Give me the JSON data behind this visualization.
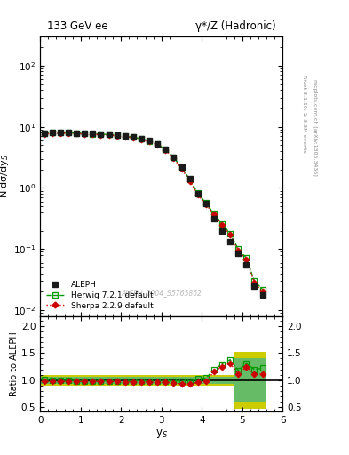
{
  "title_left": "133 GeV ee",
  "title_right": "γ*/Z (Hadronic)",
  "ylabel_main": "N dσ/dy$_S$",
  "ylabel_ratio": "Ratio to ALEPH",
  "xlabel": "y$_S$",
  "right_label_top": "Rivet 3.1.10; ≥ 3.3M events",
  "right_label_bot": "mcplots.cern.ch [arXiv:1306.3436]",
  "watermark": "ALEPH_2004_S5765862",
  "aleph_x": [
    0.1,
    0.3,
    0.5,
    0.7,
    0.9,
    1.1,
    1.3,
    1.5,
    1.7,
    1.9,
    2.1,
    2.3,
    2.5,
    2.7,
    2.9,
    3.1,
    3.3,
    3.5,
    3.7,
    3.9,
    4.1,
    4.3,
    4.5,
    4.7,
    4.9,
    5.1,
    5.3,
    5.5
  ],
  "aleph_y": [
    7.8,
    8.0,
    8.1,
    8.0,
    7.9,
    7.8,
    7.7,
    7.6,
    7.5,
    7.3,
    7.1,
    6.8,
    6.4,
    5.9,
    5.2,
    4.3,
    3.2,
    2.2,
    1.4,
    0.8,
    0.55,
    0.32,
    0.2,
    0.13,
    0.085,
    0.055,
    0.025,
    0.018
  ],
  "herwig_x": [
    0.1,
    0.3,
    0.5,
    0.7,
    0.9,
    1.1,
    1.3,
    1.5,
    1.7,
    1.9,
    2.1,
    2.3,
    2.5,
    2.7,
    2.9,
    3.1,
    3.3,
    3.5,
    3.7,
    3.9,
    4.1,
    4.3,
    4.5,
    4.7,
    4.9,
    5.1,
    5.3,
    5.5
  ],
  "herwig_y": [
    7.88,
    8.0,
    8.08,
    7.99,
    7.88,
    7.78,
    7.68,
    7.58,
    7.45,
    7.26,
    7.07,
    6.77,
    6.36,
    5.87,
    5.17,
    4.28,
    3.18,
    2.17,
    1.38,
    0.82,
    0.57,
    0.38,
    0.26,
    0.18,
    0.1,
    0.072,
    0.03,
    0.022
  ],
  "sherpa_x": [
    0.1,
    0.3,
    0.5,
    0.7,
    0.9,
    1.1,
    1.3,
    1.5,
    1.7,
    1.9,
    2.1,
    2.3,
    2.5,
    2.7,
    2.9,
    3.1,
    3.3,
    3.5,
    3.7,
    3.9,
    4.1,
    4.3,
    4.5,
    4.7,
    4.9,
    5.1,
    5.3,
    5.5
  ],
  "sherpa_y": [
    7.65,
    7.8,
    7.9,
    7.82,
    7.73,
    7.63,
    7.53,
    7.43,
    7.32,
    7.12,
    6.92,
    6.62,
    6.22,
    5.73,
    5.05,
    4.15,
    3.05,
    2.05,
    1.3,
    0.77,
    0.54,
    0.37,
    0.25,
    0.17,
    0.095,
    0.068,
    0.028,
    0.02
  ],
  "herwig_ratio": [
    1.01,
    1.0,
    1.0,
    1.0,
    0.99,
    0.99,
    0.99,
    0.99,
    0.99,
    0.99,
    0.99,
    0.99,
    0.99,
    0.99,
    0.99,
    0.99,
    0.99,
    0.99,
    0.99,
    1.025,
    1.04,
    1.19,
    1.3,
    1.38,
    1.18,
    1.31,
    1.2,
    1.22
  ],
  "sherpa_ratio": [
    0.98,
    0.975,
    0.975,
    0.978,
    0.978,
    0.978,
    0.978,
    0.978,
    0.976,
    0.975,
    0.974,
    0.973,
    0.972,
    0.97,
    0.971,
    0.965,
    0.953,
    0.932,
    0.929,
    0.963,
    0.982,
    1.156,
    1.25,
    1.31,
    1.12,
    1.24,
    1.12,
    1.11
  ],
  "green_band_edges": [
    0.0,
    4.8,
    5.2,
    5.6
  ],
  "green_band_lo": [
    0.935,
    0.6,
    0.6
  ],
  "green_band_hi": [
    1.065,
    1.4,
    1.4
  ],
  "yellow_band_edges": [
    0.0,
    4.8,
    5.2,
    5.6
  ],
  "yellow_band_lo": [
    0.905,
    0.48,
    0.48
  ],
  "yellow_band_hi": [
    1.095,
    1.52,
    1.52
  ],
  "aleph_color": "#1a1a1a",
  "herwig_color": "#009900",
  "sherpa_color": "#cc0000",
  "herwig_band_color": "#66bb66",
  "yellow_band_color": "#cccc00",
  "xlim": [
    0,
    6
  ],
  "ylim_main": [
    0.008,
    300
  ],
  "ylim_ratio": [
    0.42,
    2.18
  ],
  "ratio_yticks": [
    0.5,
    1.0,
    1.5,
    2.0
  ]
}
